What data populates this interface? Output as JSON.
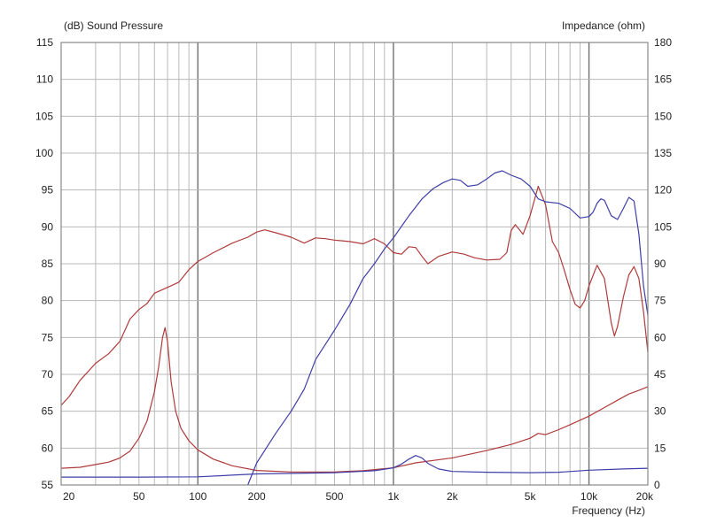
{
  "chart_data": {
    "type": "line",
    "title": "",
    "ylabel_left": "(dB)  Sound Pressure",
    "ylabel_right": "Impedance  (ohm)",
    "xlabel": "Frequency  (Hz)",
    "x_scale": "log",
    "xlim": [
      20,
      20000
    ],
    "ylim_left": [
      55,
      115
    ],
    "ylim_right": [
      0,
      180
    ],
    "grid": true,
    "x_ticks": [
      {
        "value": 20,
        "label": "20"
      },
      {
        "value": 50,
        "label": "50"
      },
      {
        "value": 100,
        "label": "100"
      },
      {
        "value": 200,
        "label": "200"
      },
      {
        "value": 500,
        "label": "500"
      },
      {
        "value": 1000,
        "label": "1k"
      },
      {
        "value": 2000,
        "label": "2k"
      },
      {
        "value": 5000,
        "label": "5k"
      },
      {
        "value": 10000,
        "label": "10k"
      },
      {
        "value": 20000,
        "label": "20k"
      }
    ],
    "y_ticks_left": [
      55,
      60,
      65,
      70,
      75,
      80,
      85,
      90,
      95,
      100,
      105,
      110,
      115
    ],
    "y_ticks_right": [
      0,
      15,
      30,
      45,
      60,
      75,
      90,
      105,
      120,
      135,
      150,
      165,
      180
    ],
    "series": [
      {
        "axis": "left",
        "color": "#b03a3a",
        "points": [
          [
            20,
            65.8
          ],
          [
            22,
            67
          ],
          [
            25,
            69.2
          ],
          [
            30,
            71.5
          ],
          [
            35,
            72.8
          ],
          [
            40,
            74.5
          ],
          [
            45,
            77.5
          ],
          [
            50,
            78.8
          ],
          [
            55,
            79.6
          ],
          [
            60,
            81.0
          ],
          [
            70,
            81.8
          ],
          [
            80,
            82.5
          ],
          [
            90,
            84.2
          ],
          [
            100,
            85.3
          ],
          [
            120,
            86.5
          ],
          [
            150,
            87.8
          ],
          [
            180,
            88.6
          ],
          [
            200,
            89.3
          ],
          [
            220,
            89.6
          ],
          [
            250,
            89.2
          ],
          [
            300,
            88.6
          ],
          [
            350,
            87.8
          ],
          [
            400,
            88.5
          ],
          [
            450,
            88.4
          ],
          [
            500,
            88.2
          ],
          [
            600,
            88.0
          ],
          [
            700,
            87.7
          ],
          [
            800,
            88.4
          ],
          [
            900,
            87.7
          ],
          [
            1000,
            86.5
          ],
          [
            1100,
            86.3
          ],
          [
            1200,
            87.3
          ],
          [
            1300,
            87.2
          ],
          [
            1400,
            86.0
          ],
          [
            1500,
            85.0
          ],
          [
            1700,
            86.0
          ],
          [
            2000,
            86.6
          ],
          [
            2300,
            86.3
          ],
          [
            2600,
            85.8
          ],
          [
            3000,
            85.5
          ],
          [
            3500,
            85.6
          ],
          [
            3800,
            86.5
          ],
          [
            4000,
            89.5
          ],
          [
            4200,
            90.3
          ],
          [
            4600,
            89.0
          ],
          [
            5000,
            91.5
          ],
          [
            5500,
            95.5
          ],
          [
            6000,
            93.0
          ],
          [
            6500,
            88.0
          ],
          [
            7000,
            86.5
          ],
          [
            7500,
            84.0
          ],
          [
            8000,
            81.5
          ],
          [
            8500,
            79.5
          ],
          [
            9000,
            79.0
          ],
          [
            9500,
            80.0
          ],
          [
            10000,
            82.0
          ],
          [
            11000,
            84.8
          ],
          [
            12000,
            83.0
          ],
          [
            13000,
            77.0
          ],
          [
            13500,
            75.2
          ],
          [
            14000,
            76.5
          ],
          [
            15000,
            80.5
          ],
          [
            16000,
            83.5
          ],
          [
            17000,
            84.6
          ],
          [
            18000,
            83.0
          ],
          [
            19000,
            78.5
          ],
          [
            20000,
            73.0
          ]
        ]
      },
      {
        "axis": "right",
        "color": "#b03a3a",
        "points": [
          [
            20,
            6.8
          ],
          [
            25,
            7.2
          ],
          [
            30,
            8.3
          ],
          [
            35,
            9.3
          ],
          [
            40,
            11.0
          ],
          [
            45,
            13.8
          ],
          [
            50,
            19.0
          ],
          [
            55,
            26.0
          ],
          [
            60,
            38.0
          ],
          [
            63,
            48.0
          ],
          [
            66,
            60.0
          ],
          [
            68,
            64.0
          ],
          [
            70,
            58.0
          ],
          [
            73,
            42.0
          ],
          [
            77,
            30.0
          ],
          [
            82,
            23.0
          ],
          [
            90,
            18.0
          ],
          [
            100,
            14.3
          ],
          [
            120,
            10.5
          ],
          [
            150,
            7.8
          ],
          [
            200,
            5.9
          ],
          [
            300,
            5.3
          ],
          [
            500,
            5.3
          ],
          [
            700,
            5.8
          ],
          [
            1000,
            7.0
          ],
          [
            1300,
            9.0
          ],
          [
            2000,
            11.0
          ],
          [
            3000,
            14.0
          ],
          [
            4000,
            16.5
          ],
          [
            5000,
            19.0
          ],
          [
            5500,
            21.0
          ],
          [
            6000,
            20.5
          ],
          [
            7000,
            22.5
          ],
          [
            8000,
            24.5
          ],
          [
            10000,
            28.0
          ],
          [
            12000,
            31.5
          ],
          [
            14000,
            34.5
          ],
          [
            16000,
            37.0
          ],
          [
            18000,
            38.5
          ],
          [
            20000,
            40.0
          ]
        ]
      },
      {
        "axis": "left",
        "color": "#3e3ea8",
        "points": [
          [
            180,
            55.0
          ],
          [
            200,
            58.0
          ],
          [
            250,
            62.0
          ],
          [
            300,
            65.0
          ],
          [
            350,
            68.0
          ],
          [
            400,
            72.0
          ],
          [
            500,
            76.0
          ],
          [
            600,
            79.5
          ],
          [
            700,
            83.0
          ],
          [
            800,
            85.0
          ],
          [
            900,
            87.0
          ],
          [
            1000,
            88.5
          ],
          [
            1200,
            91.5
          ],
          [
            1400,
            93.8
          ],
          [
            1600,
            95.2
          ],
          [
            1800,
            96.0
          ],
          [
            2000,
            96.5
          ],
          [
            2200,
            96.3
          ],
          [
            2400,
            95.5
          ],
          [
            2700,
            95.7
          ],
          [
            3000,
            96.5
          ],
          [
            3300,
            97.3
          ],
          [
            3600,
            97.6
          ],
          [
            4000,
            97.0
          ],
          [
            4500,
            96.5
          ],
          [
            5000,
            95.5
          ],
          [
            5500,
            93.8
          ],
          [
            6000,
            93.4
          ],
          [
            7000,
            93.2
          ],
          [
            8000,
            92.5
          ],
          [
            9000,
            91.2
          ],
          [
            10000,
            91.4
          ],
          [
            10500,
            92.0
          ],
          [
            11000,
            93.2
          ],
          [
            11500,
            93.8
          ],
          [
            12000,
            93.6
          ],
          [
            13000,
            91.5
          ],
          [
            14000,
            91.0
          ],
          [
            15000,
            92.5
          ],
          [
            16000,
            94.0
          ],
          [
            17000,
            93.5
          ],
          [
            18000,
            89.0
          ],
          [
            19000,
            82.0
          ],
          [
            20000,
            78.0
          ]
        ]
      },
      {
        "axis": "right",
        "color": "#3e3ea8",
        "points": [
          [
            20,
            3.2
          ],
          [
            50,
            3.2
          ],
          [
            100,
            3.3
          ],
          [
            200,
            4.5
          ],
          [
            500,
            5.0
          ],
          [
            800,
            5.8
          ],
          [
            1000,
            7.0
          ],
          [
            1100,
            8.5
          ],
          [
            1200,
            10.5
          ],
          [
            1300,
            12.0
          ],
          [
            1400,
            11.0
          ],
          [
            1500,
            8.8
          ],
          [
            1700,
            6.5
          ],
          [
            2000,
            5.5
          ],
          [
            3000,
            5.2
          ],
          [
            5000,
            5.0
          ],
          [
            7000,
            5.2
          ],
          [
            10000,
            6.0
          ],
          [
            15000,
            6.5
          ],
          [
            20000,
            6.8
          ]
        ]
      }
    ]
  }
}
